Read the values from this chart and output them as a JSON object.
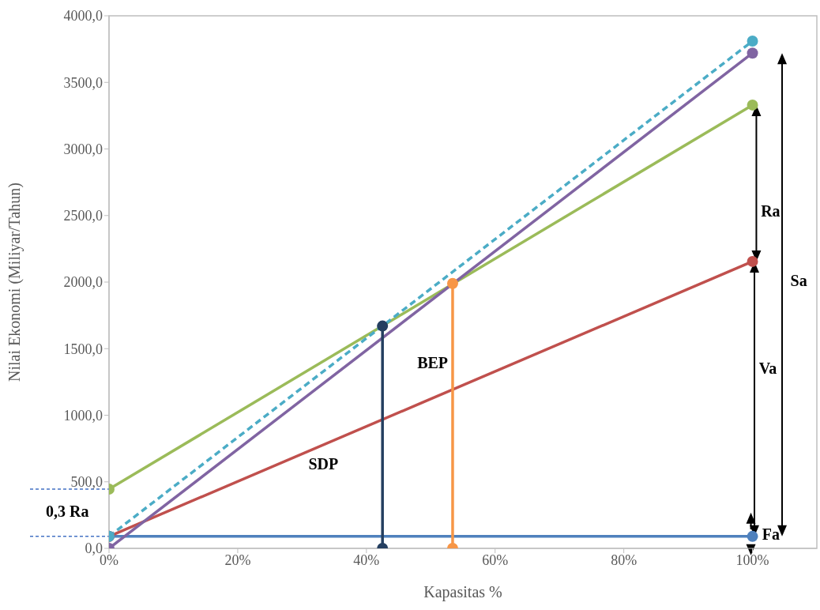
{
  "chart_data": {
    "type": "line",
    "xlabel": "Kapasitas %",
    "ylabel": "Nilai Ekonomi (Miliyar/Tahun)",
    "xlim": [
      0,
      110
    ],
    "xticks": [
      {
        "value": 0,
        "label": "0%"
      },
      {
        "value": 20,
        "label": "20%"
      },
      {
        "value": 40,
        "label": "40%"
      },
      {
        "value": 60,
        "label": "60%"
      },
      {
        "value": 80,
        "label": "80%"
      },
      {
        "value": 100,
        "label": "100%"
      }
    ],
    "ylim": [
      0,
      4000
    ],
    "yticks": [
      {
        "value": 0,
        "label": "0,0"
      },
      {
        "value": 500,
        "label": "500,0"
      },
      {
        "value": 1000,
        "label": "1000,0"
      },
      {
        "value": 1500,
        "label": "1500,0"
      },
      {
        "value": 2000,
        "label": "2000,0"
      },
      {
        "value": 2500,
        "label": "2500,0"
      },
      {
        "value": 3000,
        "label": "3000,0"
      },
      {
        "value": 3500,
        "label": "3500,0"
      },
      {
        "value": 4000,
        "label": "4000,0"
      }
    ],
    "marker": "circle",
    "series": [
      {
        "color": "#4f81bd",
        "x": [
          0,
          100
        ],
        "values": [
          90,
          90
        ]
      },
      {
        "color": "#c0504d",
        "x": [
          0,
          100
        ],
        "values": [
          90,
          2155
        ]
      },
      {
        "color": "#9bbb59",
        "x": [
          0,
          100
        ],
        "values": [
          445,
          3330
        ]
      },
      {
        "color": "#4bacc6",
        "x": [
          0,
          100
        ],
        "values": [
          90,
          3810
        ],
        "line_style": "dashed"
      },
      {
        "color": "#8064a2",
        "x": [
          0,
          100
        ],
        "values": [
          0,
          3720
        ]
      },
      {
        "color": "#243f60",
        "x": [
          42.5,
          42.5
        ],
        "values": [
          0,
          1670
        ]
      },
      {
        "color": "#f79646",
        "x": [
          53.4,
          53.4
        ],
        "values": [
          0,
          1990
        ]
      }
    ],
    "annotations": [
      "Ra",
      "Va",
      "Sa",
      "Fa",
      "BEP",
      "SDP",
      "0,3 Ra"
    ]
  }
}
